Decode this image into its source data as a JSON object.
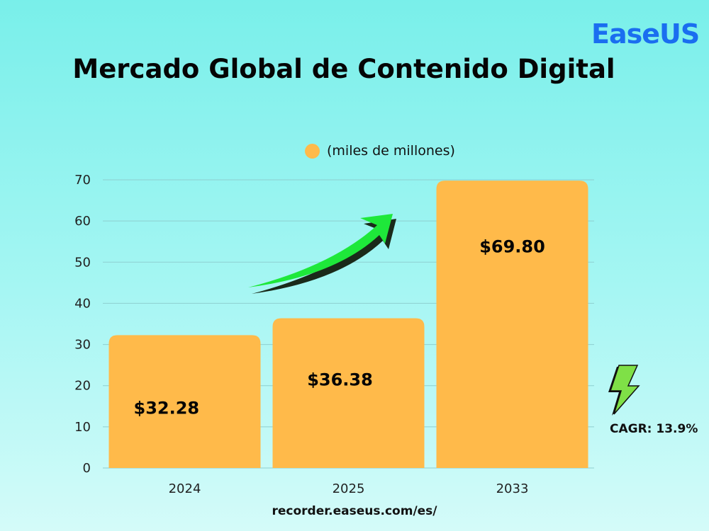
{
  "brand": {
    "logo_text": "EaseUS"
  },
  "footer": {
    "url": "recorder.easeus.com/es/"
  },
  "annotation": {
    "cagr_text": "CAGR: 13.9%",
    "icon": "lightning-bolt-icon",
    "trend_icon": "upward-arrow-icon"
  },
  "colors": {
    "bar": "#ffba4a",
    "arrow": "#1ee83a",
    "logo": "#1a6ef0",
    "bolt": "#7fe047"
  },
  "chart_data": {
    "type": "bar",
    "title": "Mercado Global de Contenido Digital",
    "legend": "(miles de millones)",
    "categories": [
      "2024",
      "2025",
      "2033"
    ],
    "values": [
      32.28,
      36.38,
      69.8
    ],
    "data_labels": [
      "$32.28",
      "$36.38",
      "$69.80"
    ],
    "yticks": [
      "0",
      "10",
      "20",
      "30",
      "40",
      "50",
      "60",
      "70"
    ],
    "ylim": [
      0,
      70
    ],
    "grid": true,
    "legend_position": "top-center"
  }
}
